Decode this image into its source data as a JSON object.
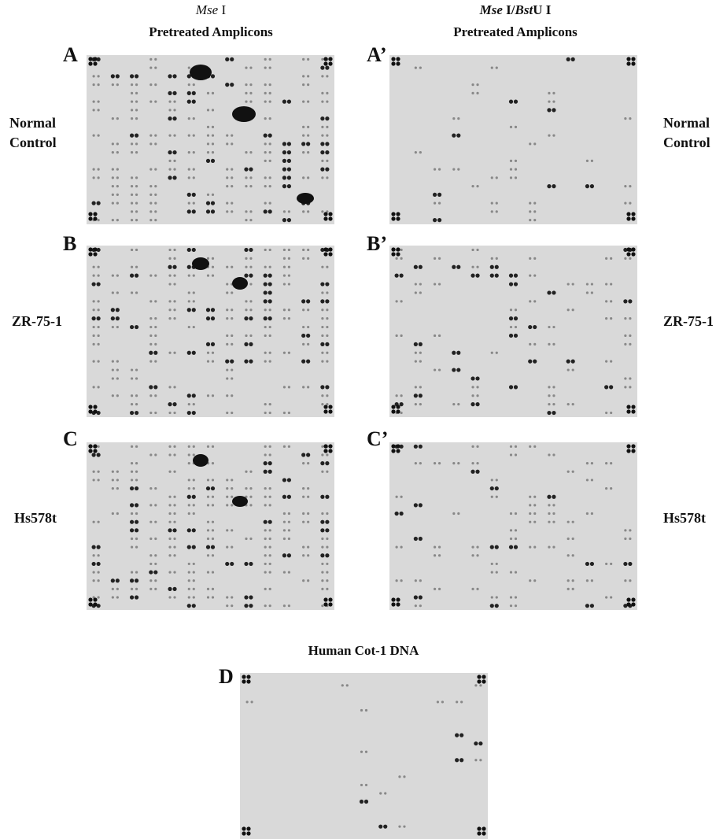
{
  "columns": [
    {
      "title_parts": [
        "Mse",
        " I"
      ],
      "subtitle": "Pretreated Amplicons"
    },
    {
      "title_parts": [
        "Mse",
        " I/",
        "Bst",
        "U I"
      ],
      "subtitle": "Pretreated Amplicons"
    }
  ],
  "panels": [
    {
      "label": "A"
    },
    {
      "label": "A’"
    },
    {
      "label": "B"
    },
    {
      "label": "B’"
    },
    {
      "label": "C"
    },
    {
      "label": "C’"
    }
  ],
  "rows": [
    {
      "label_lines": [
        "Normal",
        "Control"
      ]
    },
    {
      "label_lines": [
        "ZR-75-1"
      ]
    },
    {
      "label_lines": [
        "Hs578t"
      ]
    }
  ],
  "bottom": {
    "title": "Human Cot-1 DNA",
    "label": "D"
  }
}
